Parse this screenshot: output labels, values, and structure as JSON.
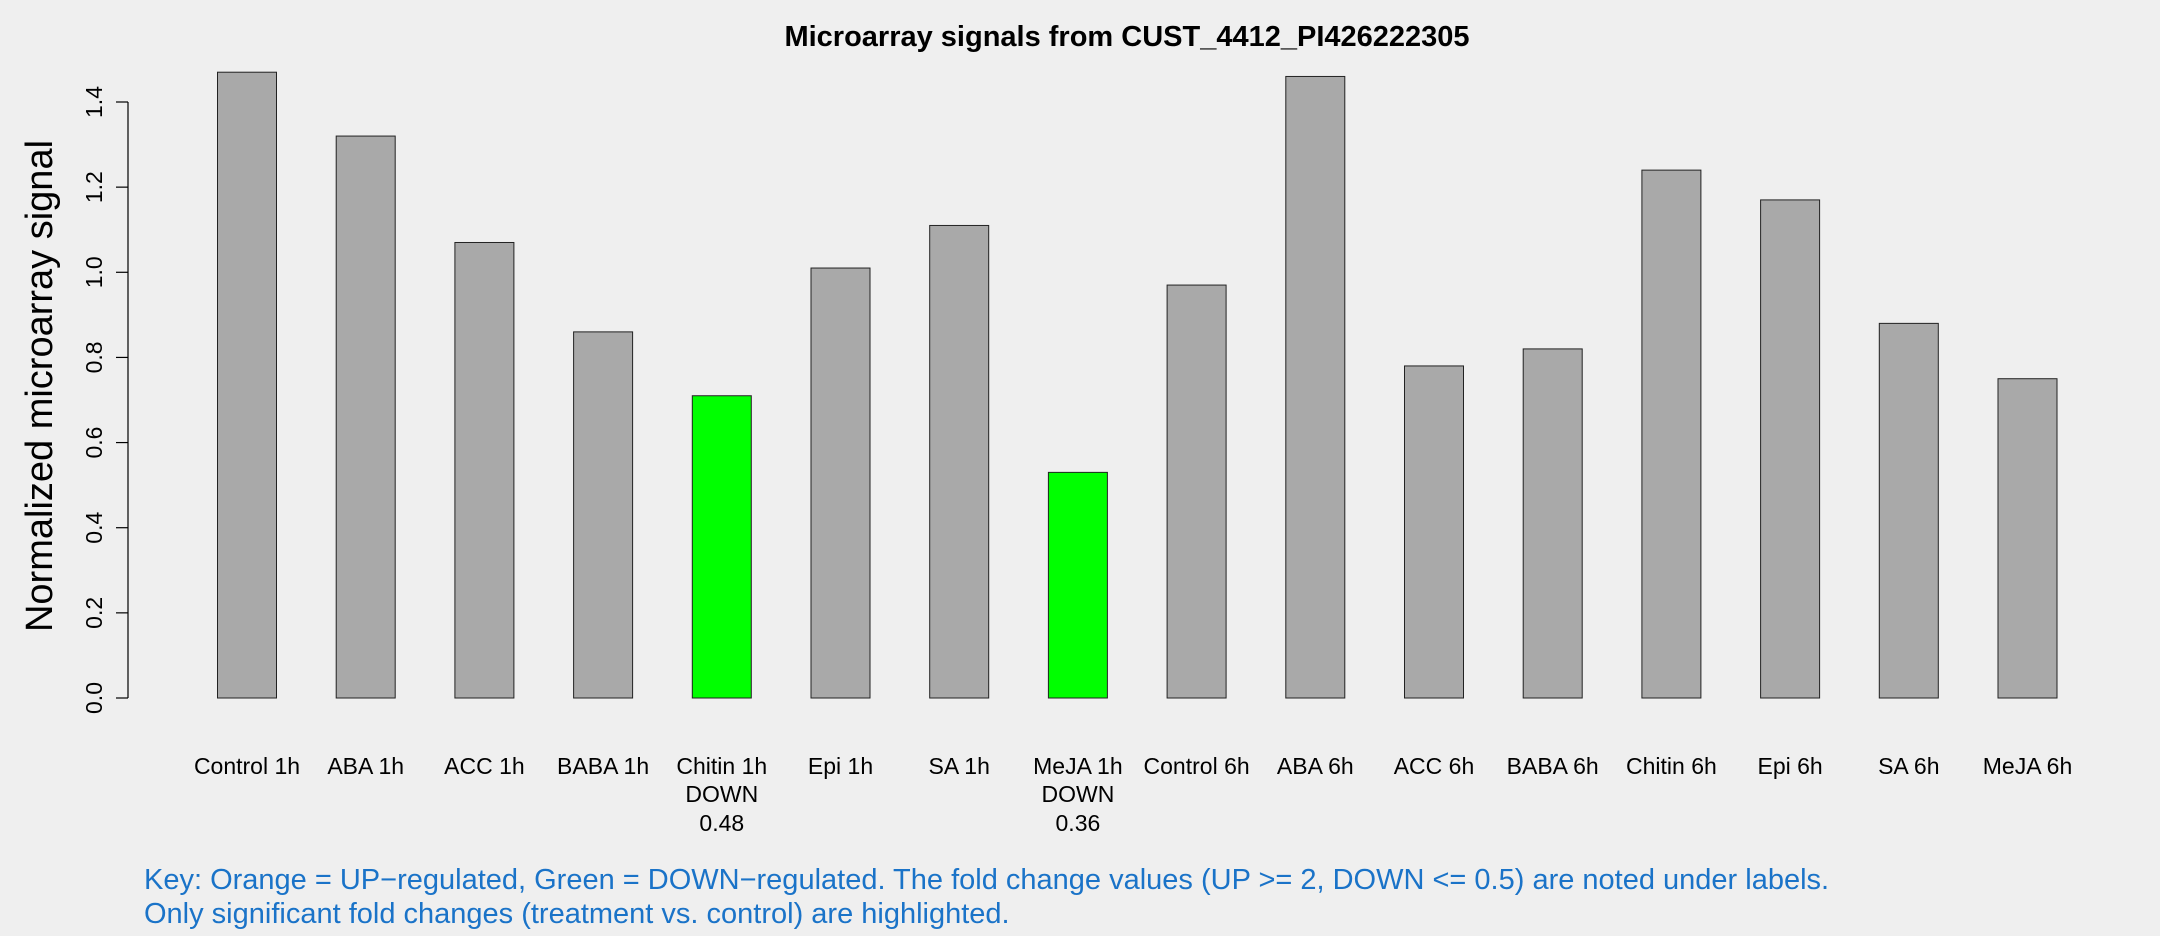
{
  "chart_data": {
    "type": "bar",
    "title": "Microarray signals from CUST_4412_PI426222305",
    "ylabel": "Normalized microarray signal",
    "xlabel": "",
    "ylim": [
      0,
      1.4
    ],
    "yticks": [
      "0.0",
      "0.2",
      "0.4",
      "0.6",
      "0.8",
      "1.0",
      "1.2",
      "1.4"
    ],
    "grid": false,
    "categories": [
      "Control 1h",
      "ABA 1h",
      "ACC 1h",
      "BABA 1h",
      "Chitin 1h",
      "Epi 1h",
      "SA 1h",
      "MeJA 1h",
      "Control 6h",
      "ABA 6h",
      "ACC 6h",
      "BABA 6h",
      "Chitin 6h",
      "Epi 6h",
      "SA 6h",
      "MeJA 6h"
    ],
    "values": [
      1.47,
      1.32,
      1.07,
      0.86,
      0.71,
      1.01,
      1.11,
      0.53,
      0.97,
      1.46,
      0.78,
      0.82,
      1.24,
      1.17,
      0.88,
      0.75
    ],
    "annotations": [
      {
        "category": "Chitin 1h",
        "direction": "DOWN",
        "fold_change": "0.48"
      },
      {
        "category": "MeJA 1h",
        "direction": "DOWN",
        "fold_change": "0.36"
      }
    ],
    "colors": {
      "default": "#a9a9a9",
      "down": "#00ff00",
      "up": "#ffa500",
      "key_text": "#1a73c8"
    }
  },
  "key": {
    "line1": "Key: Orange = UP−regulated, Green = DOWN−regulated. The fold change values (UP >= 2, DOWN <= 0.5) are noted under labels.",
    "line2": "Only significant fold changes (treatment vs. control) are highlighted."
  }
}
